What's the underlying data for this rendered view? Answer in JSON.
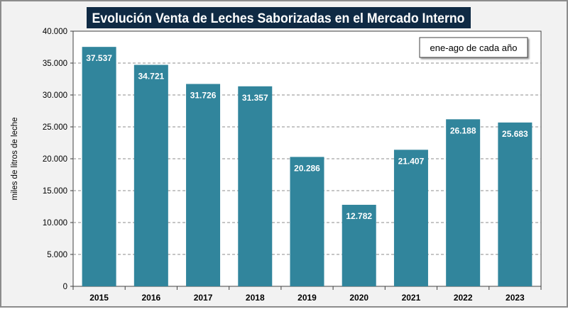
{
  "chart_data": {
    "type": "bar",
    "title": "Evolución Venta de Leches Saborizadas en el Mercado Interno",
    "annotation": "ene-ago de cada año",
    "xlabel": "",
    "ylabel": "miles de litros de leche",
    "categories": [
      "2015",
      "2016",
      "2017",
      "2018",
      "2019",
      "2020",
      "2021",
      "2022",
      "2023"
    ],
    "values": [
      37537,
      34721,
      31726,
      31357,
      20286,
      12782,
      21407,
      26188,
      25683
    ],
    "data_labels": [
      "37.537",
      "34.721",
      "31.726",
      "31.357",
      "20.286",
      "12.782",
      "21.407",
      "26.188",
      "25.683"
    ],
    "ylim": [
      0,
      40000
    ],
    "yticks": [
      0,
      5000,
      10000,
      15000,
      20000,
      25000,
      30000,
      35000,
      40000
    ],
    "ytick_labels": [
      "0",
      "5.000",
      "10.000",
      "15.000",
      "20.000",
      "25.000",
      "30.000",
      "35.000",
      "40.000"
    ],
    "grid": true,
    "colors": {
      "bar": "#31859c",
      "title_bg": "#0f2a44",
      "title_text": "#ffffff"
    }
  }
}
